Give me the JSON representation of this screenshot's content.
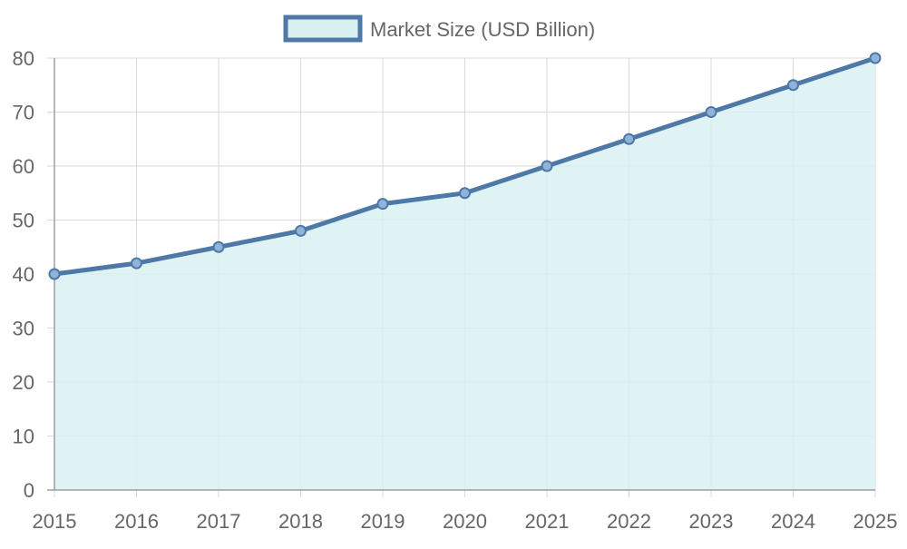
{
  "chart_data": {
    "type": "area",
    "categories": [
      "2015",
      "2016",
      "2017",
      "2018",
      "2019",
      "2020",
      "2021",
      "2022",
      "2023",
      "2024",
      "2025"
    ],
    "series": [
      {
        "name": "Market Size (USD Billion)",
        "values": [
          40,
          42,
          45,
          48,
          53,
          55,
          60,
          65,
          70,
          75,
          80
        ]
      }
    ],
    "ylim": [
      0,
      80
    ],
    "yticks": [
      "0",
      "10",
      "20",
      "30",
      "40",
      "50",
      "60",
      "70",
      "80"
    ],
    "grid": true,
    "legend_position": "top-center",
    "colors": {
      "line": "#4e79a7",
      "fill": "#d9f0f2",
      "grid": "#d9d9d9",
      "axis": "#9e9e9e",
      "text": "#666666"
    }
  }
}
